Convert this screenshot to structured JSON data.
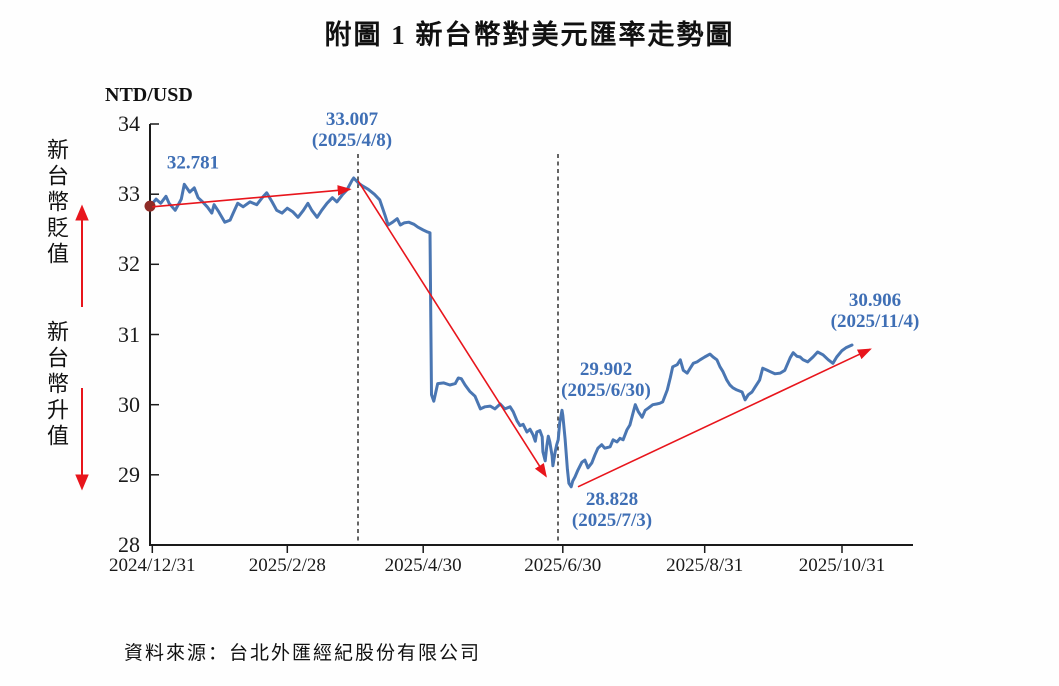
{
  "page": {
    "source_note": "資料來源：台北外匯經紀股份有限公司"
  },
  "chart_data": {
    "type": "line",
    "title": "附圖 1  新台幣對美元匯率走勢圖",
    "ylabel": "NTD/USD",
    "ylim": [
      28,
      34
    ],
    "grid": false,
    "yticks": [
      34,
      33,
      32,
      31,
      30,
      29,
      28
    ],
    "xticks": [
      {
        "label": "2024/12/31",
        "f": 0.003
      },
      {
        "label": "2025/2/28",
        "f": 0.18
      },
      {
        "label": "2025/4/30",
        "f": 0.358
      },
      {
        "label": "2025/6/30",
        "f": 0.541
      },
      {
        "label": "2025/8/31",
        "f": 0.727
      },
      {
        "label": "2025/10/31",
        "f": 0.907
      }
    ],
    "line_color": "#4a76b2",
    "annotation_color": "#3f6fb5",
    "trend_color": "#e8151c",
    "start_marker_color": "#8e2b26",
    "direction_labels": {
      "up": "新台幣貶值",
      "down": "新台幣升值"
    },
    "key_points": [
      {
        "date": "2024/12/31",
        "value": 32.781,
        "label": "32.781",
        "label2": ""
      },
      {
        "date": "2025/4/8",
        "value": 33.007,
        "label": "33.007",
        "label2": "(2025/4/8)"
      },
      {
        "date": "2025/6/30",
        "value": 29.902,
        "label": "29.902",
        "label2": "(2025/6/30)"
      },
      {
        "date": "2025/7/3",
        "value": 28.828,
        "label": "28.828",
        "label2": "(2025/7/3)"
      },
      {
        "date": "2025/11/4",
        "value": 30.906,
        "label": "30.906",
        "label2": "(2025/11/4)"
      }
    ],
    "dashed_lines": [
      {
        "f": 0.2726,
        "date": "2025/4/8"
      },
      {
        "f": 0.5347,
        "date": "2025/6/30"
      }
    ],
    "trend_arrows": [
      {
        "from": [
          0.003,
          32.82
        ],
        "to": [
          0.262,
          33.07
        ]
      },
      {
        "from": [
          0.2726,
          33.19
        ],
        "to": [
          0.519,
          28.98
        ]
      },
      {
        "from": [
          0.561,
          28.83
        ],
        "to": [
          0.944,
          30.79
        ]
      }
    ],
    "start_marker": {
      "f": 0.003,
      "value": 32.781
    },
    "series": [
      [
        0.0,
        32.83
      ],
      [
        0.008,
        32.93
      ],
      [
        0.014,
        32.87
      ],
      [
        0.021,
        32.97
      ],
      [
        0.025,
        32.87
      ],
      [
        0.033,
        32.77
      ],
      [
        0.041,
        32.93
      ],
      [
        0.045,
        33.14
      ],
      [
        0.052,
        33.03
      ],
      [
        0.058,
        33.09
      ],
      [
        0.063,
        32.95
      ],
      [
        0.069,
        32.89
      ],
      [
        0.075,
        32.82
      ],
      [
        0.081,
        32.73
      ],
      [
        0.084,
        32.85
      ],
      [
        0.09,
        32.75
      ],
      [
        0.098,
        32.6
      ],
      [
        0.105,
        32.63
      ],
      [
        0.109,
        32.73
      ],
      [
        0.115,
        32.87
      ],
      [
        0.122,
        32.82
      ],
      [
        0.131,
        32.89
      ],
      [
        0.14,
        32.85
      ],
      [
        0.147,
        32.95
      ],
      [
        0.153,
        33.02
      ],
      [
        0.16,
        32.89
      ],
      [
        0.166,
        32.77
      ],
      [
        0.173,
        32.73
      ],
      [
        0.18,
        32.8
      ],
      [
        0.187,
        32.75
      ],
      [
        0.194,
        32.67
      ],
      [
        0.201,
        32.77
      ],
      [
        0.207,
        32.87
      ],
      [
        0.212,
        32.77
      ],
      [
        0.219,
        32.67
      ],
      [
        0.225,
        32.77
      ],
      [
        0.232,
        32.87
      ],
      [
        0.239,
        32.95
      ],
      [
        0.245,
        32.89
      ],
      [
        0.252,
        32.99
      ],
      [
        0.258,
        33.06
      ],
      [
        0.265,
        33.2
      ],
      [
        0.267,
        33.23
      ],
      [
        0.273,
        33.16
      ],
      [
        0.278,
        33.12
      ],
      [
        0.286,
        33.07
      ],
      [
        0.294,
        33.0
      ],
      [
        0.301,
        32.92
      ],
      [
        0.308,
        32.7
      ],
      [
        0.312,
        32.56
      ],
      [
        0.318,
        32.6
      ],
      [
        0.324,
        32.65
      ],
      [
        0.328,
        32.56
      ],
      [
        0.333,
        32.59
      ],
      [
        0.339,
        32.6
      ],
      [
        0.346,
        32.57
      ],
      [
        0.351,
        32.53
      ],
      [
        0.358,
        32.49
      ],
      [
        0.364,
        32.46
      ],
      [
        0.367,
        32.45
      ],
      [
        0.369,
        30.14
      ],
      [
        0.372,
        30.05
      ],
      [
        0.377,
        30.3
      ],
      [
        0.385,
        30.31
      ],
      [
        0.393,
        30.28
      ],
      [
        0.4,
        30.3
      ],
      [
        0.404,
        30.38
      ],
      [
        0.408,
        30.37
      ],
      [
        0.413,
        30.28
      ],
      [
        0.419,
        30.19
      ],
      [
        0.426,
        30.12
      ],
      [
        0.433,
        29.94
      ],
      [
        0.439,
        29.97
      ],
      [
        0.446,
        29.98
      ],
      [
        0.452,
        29.94
      ],
      [
        0.459,
        30.01
      ],
      [
        0.465,
        29.94
      ],
      [
        0.472,
        29.97
      ],
      [
        0.476,
        29.9
      ],
      [
        0.481,
        29.77
      ],
      [
        0.485,
        29.7
      ],
      [
        0.489,
        29.72
      ],
      [
        0.494,
        29.61
      ],
      [
        0.498,
        29.65
      ],
      [
        0.502,
        29.57
      ],
      [
        0.505,
        29.48
      ],
      [
        0.507,
        29.61
      ],
      [
        0.511,
        29.63
      ],
      [
        0.514,
        29.54
      ],
      [
        0.515,
        29.33
      ],
      [
        0.518,
        29.2
      ],
      [
        0.52,
        29.41
      ],
      [
        0.522,
        29.55
      ],
      [
        0.524,
        29.47
      ],
      [
        0.527,
        29.27
      ],
      [
        0.528,
        29.13
      ],
      [
        0.531,
        29.33
      ],
      [
        0.533,
        29.43
      ],
      [
        0.535,
        29.5
      ],
      [
        0.537,
        29.74
      ],
      [
        0.54,
        29.92
      ],
      [
        0.541,
        29.85
      ],
      [
        0.544,
        29.51
      ],
      [
        0.547,
        29.08
      ],
      [
        0.549,
        28.88
      ],
      [
        0.552,
        28.83
      ],
      [
        0.554,
        28.91
      ],
      [
        0.557,
        28.97
      ],
      [
        0.561,
        29.07
      ],
      [
        0.566,
        29.18
      ],
      [
        0.57,
        29.21
      ],
      [
        0.574,
        29.1
      ],
      [
        0.579,
        29.17
      ],
      [
        0.583,
        29.28
      ],
      [
        0.587,
        29.38
      ],
      [
        0.592,
        29.43
      ],
      [
        0.596,
        29.38
      ],
      [
        0.603,
        29.4
      ],
      [
        0.607,
        29.5
      ],
      [
        0.612,
        29.47
      ],
      [
        0.616,
        29.52
      ],
      [
        0.62,
        29.5
      ],
      [
        0.625,
        29.64
      ],
      [
        0.629,
        29.71
      ],
      [
        0.633,
        29.88
      ],
      [
        0.636,
        30.0
      ],
      [
        0.64,
        29.9
      ],
      [
        0.645,
        29.82
      ],
      [
        0.649,
        29.92
      ],
      [
        0.653,
        29.95
      ],
      [
        0.659,
        30.0
      ],
      [
        0.664,
        30.01
      ],
      [
        0.668,
        30.02
      ],
      [
        0.672,
        30.04
      ],
      [
        0.678,
        30.21
      ],
      [
        0.682,
        30.39
      ],
      [
        0.685,
        30.54
      ],
      [
        0.691,
        30.57
      ],
      [
        0.695,
        30.64
      ],
      [
        0.699,
        30.49
      ],
      [
        0.704,
        30.45
      ],
      [
        0.708,
        30.52
      ],
      [
        0.712,
        30.59
      ],
      [
        0.717,
        30.61
      ],
      [
        0.721,
        30.64
      ],
      [
        0.727,
        30.68
      ],
      [
        0.734,
        30.72
      ],
      [
        0.738,
        30.68
      ],
      [
        0.743,
        30.64
      ],
      [
        0.747,
        30.54
      ],
      [
        0.751,
        30.47
      ],
      [
        0.756,
        30.35
      ],
      [
        0.76,
        30.28
      ],
      [
        0.764,
        30.24
      ],
      [
        0.769,
        30.21
      ],
      [
        0.776,
        30.18
      ],
      [
        0.78,
        30.07
      ],
      [
        0.784,
        30.14
      ],
      [
        0.789,
        30.18
      ],
      [
        0.793,
        30.25
      ],
      [
        0.799,
        30.35
      ],
      [
        0.803,
        30.52
      ],
      [
        0.809,
        30.49
      ],
      [
        0.813,
        30.47
      ],
      [
        0.819,
        30.44
      ],
      [
        0.826,
        30.45
      ],
      [
        0.832,
        30.49
      ],
      [
        0.839,
        30.67
      ],
      [
        0.843,
        30.74
      ],
      [
        0.848,
        30.69
      ],
      [
        0.852,
        30.68
      ],
      [
        0.856,
        30.64
      ],
      [
        0.862,
        30.61
      ],
      [
        0.869,
        30.68
      ],
      [
        0.875,
        30.75
      ],
      [
        0.882,
        30.71
      ],
      [
        0.889,
        30.64
      ],
      [
        0.895,
        30.59
      ],
      [
        0.9,
        30.68
      ],
      [
        0.907,
        30.77
      ],
      [
        0.912,
        30.81
      ],
      [
        0.92,
        30.85
      ]
    ]
  }
}
